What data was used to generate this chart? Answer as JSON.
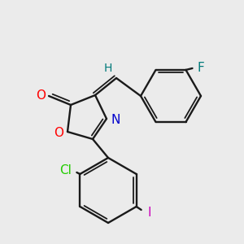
{
  "background_color": "#ebebeb",
  "bond_color": "#1a1a1a",
  "atom_colors": {
    "O": "#ff0000",
    "N": "#0000cc",
    "Cl": "#22cc00",
    "I": "#cc00bb",
    "F": "#007a7a",
    "H": "#007a7a",
    "C": "#1a1a1a"
  },
  "figsize": [
    3.0,
    3.0
  ],
  "dpi": 100
}
